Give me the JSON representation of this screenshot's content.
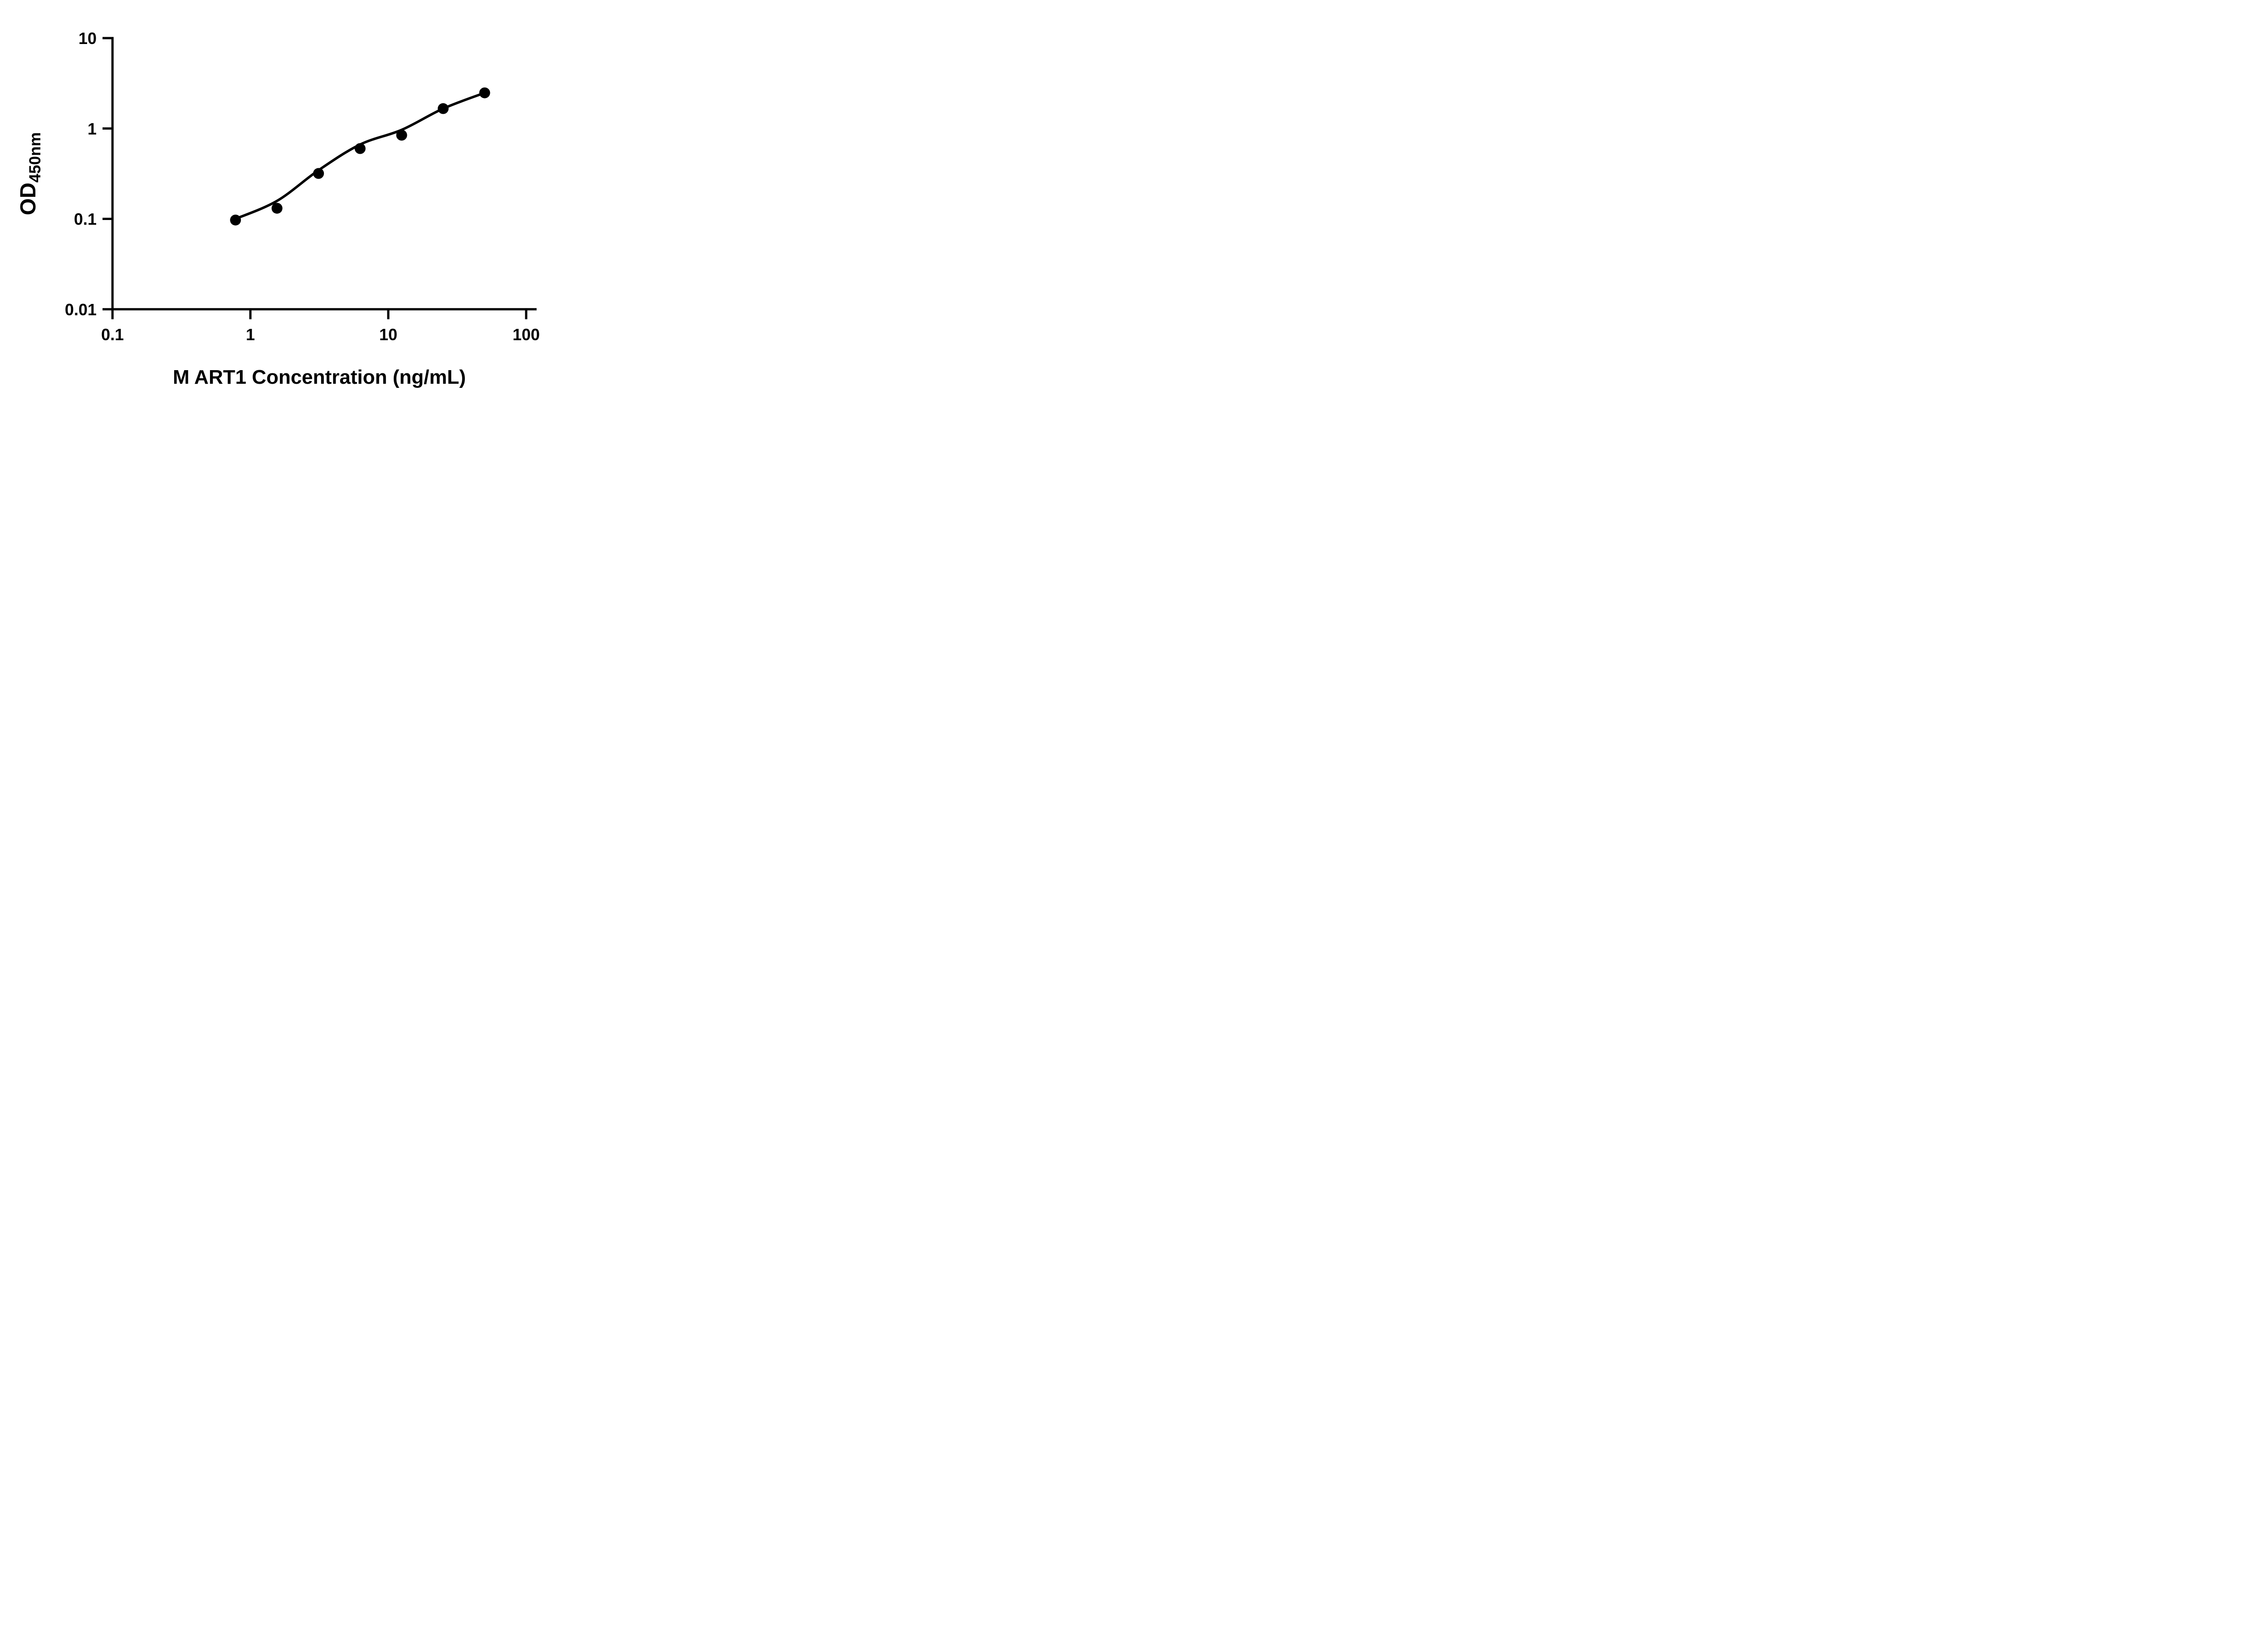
{
  "figure": {
    "background_color": "#ffffff",
    "ink_color": "#000000"
  },
  "chart_data": {
    "type": "scatter",
    "title": "",
    "xlabel": "M ART1 Concentration (ng/mL)",
    "ylabel": "OD450nm",
    "ylabel_main": "OD",
    "ylabel_subscript": "450nm",
    "x_scale": "log10",
    "y_scale": "log10",
    "xlim": [
      0.1,
      100
    ],
    "ylim": [
      0.01,
      10
    ],
    "grid": false,
    "legend": null,
    "x_ticks": [
      {
        "value": 0.1,
        "label": "0.1"
      },
      {
        "value": 1,
        "label": "1"
      },
      {
        "value": 10,
        "label": "10"
      },
      {
        "value": 100,
        "label": "100"
      }
    ],
    "y_ticks": [
      {
        "value": 10,
        "label": "10"
      },
      {
        "value": 1,
        "label": "1"
      },
      {
        "value": 0.1,
        "label": "0.1"
      },
      {
        "value": 0.01,
        "label": "0.01"
      }
    ],
    "series": [
      {
        "name": "standard-curve-points",
        "marker": "filled-circle",
        "color": "#000000",
        "points": [
          {
            "x": 0.78,
            "y": 0.097
          },
          {
            "x": 1.56,
            "y": 0.131
          },
          {
            "x": 3.12,
            "y": 0.318
          },
          {
            "x": 6.25,
            "y": 0.6
          },
          {
            "x": 12.5,
            "y": 0.843
          },
          {
            "x": 25,
            "y": 1.66
          },
          {
            "x": 50,
            "y": 2.48
          }
        ]
      }
    ],
    "fit_curve": {
      "name": "4pl-fit-line",
      "color": "#000000",
      "anchors": [
        {
          "x": 0.78,
          "y": 0.1
        },
        {
          "x": 1.56,
          "y": 0.158
        },
        {
          "x": 3.12,
          "y": 0.345
        },
        {
          "x": 6.25,
          "y": 0.665
        },
        {
          "x": 12.5,
          "y": 0.965
        },
        {
          "x": 25,
          "y": 1.66
        },
        {
          "x": 50,
          "y": 2.48
        }
      ]
    }
  }
}
